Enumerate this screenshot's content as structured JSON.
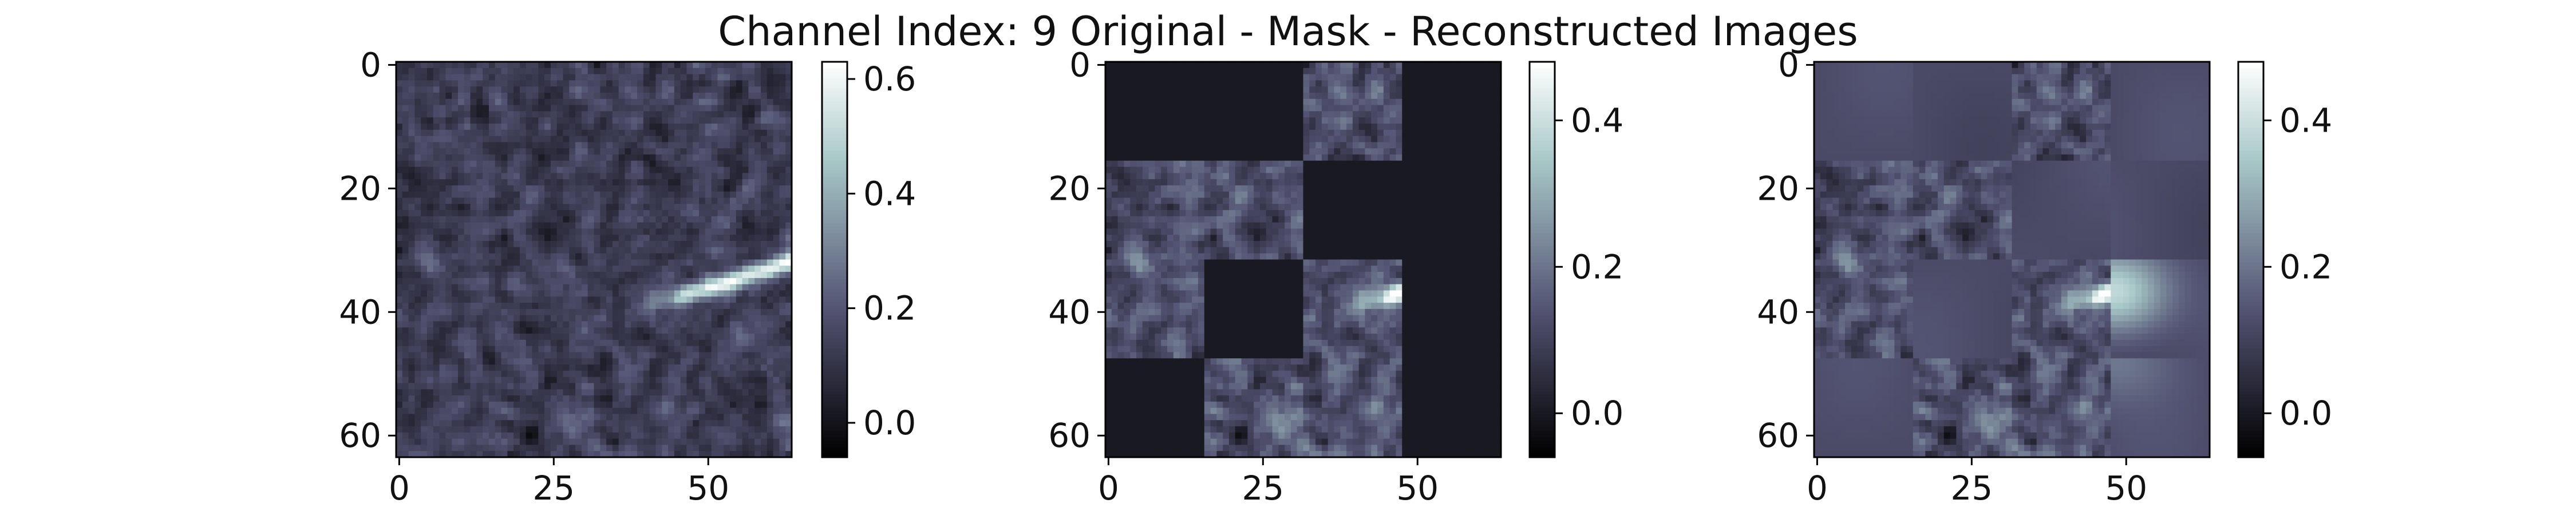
{
  "figure": {
    "title": "Channel Index: 9 Original - Mask - Reconstructed Images"
  },
  "chart_data": [
    {
      "type": "heatmap",
      "panel": "original",
      "title": "",
      "colormap": "bone",
      "grid_size": [
        64,
        64
      ],
      "xlim": [
        0,
        63
      ],
      "ylim": [
        63,
        0
      ],
      "x_ticks": [
        0,
        25,
        50
      ],
      "y_ticks": [
        0,
        20,
        40,
        60
      ],
      "value_range": [
        -0.06,
        0.63
      ],
      "colorbar_ticks": [
        "0.0",
        "0.2",
        "0.4",
        "0.6"
      ],
      "colorbar_values": [
        0.0,
        0.2,
        0.4,
        0.6
      ],
      "background_mean": 0.13,
      "feature": "bright diagonal streak from (38,40) to (63,32), peak ~0.6"
    },
    {
      "type": "heatmap",
      "panel": "mask",
      "title": "",
      "colormap": "bone",
      "grid_size": [
        64,
        64
      ],
      "xlim": [
        0,
        63
      ],
      "ylim": [
        63,
        0
      ],
      "x_ticks": [
        0,
        25,
        50
      ],
      "y_ticks": [
        0,
        20,
        40,
        60
      ],
      "value_range": [
        -0.06,
        0.48
      ],
      "colorbar_ticks": [
        "0.0",
        "0.2",
        "0.4"
      ],
      "colorbar_values": [
        0.0,
        0.2,
        0.4
      ],
      "patch_size": 16,
      "masked_fill_value": 0.0,
      "visible_patches": [
        [
          0,
          2
        ],
        [
          1,
          0
        ],
        [
          1,
          1
        ],
        [
          2,
          0
        ],
        [
          2,
          2
        ],
        [
          3,
          1
        ],
        [
          3,
          2
        ]
      ]
    },
    {
      "type": "heatmap",
      "panel": "reconstructed",
      "title": "",
      "colormap": "bone",
      "grid_size": [
        64,
        64
      ],
      "xlim": [
        0,
        63
      ],
      "ylim": [
        63,
        0
      ],
      "x_ticks": [
        0,
        25,
        50
      ],
      "y_ticks": [
        0,
        20,
        40,
        60
      ],
      "value_range": [
        -0.06,
        0.48
      ],
      "colorbar_ticks": [
        "0.0",
        "0.2",
        "0.4"
      ],
      "colorbar_values": [
        0.0,
        0.2,
        0.4
      ],
      "patch_size": 16,
      "reconstructed_patch_mean": 0.12
    }
  ]
}
